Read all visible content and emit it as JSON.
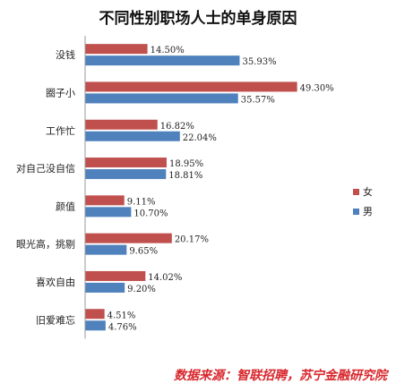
{
  "chart_data": {
    "type": "bar",
    "orientation": "horizontal",
    "title": "不同性别职场人士的单身原因",
    "categories": [
      "没钱",
      "圈子小",
      "工作忙",
      "对自己没自信",
      "颜值",
      "眼光高，挑剔",
      "喜欢自由",
      "旧爱难忘"
    ],
    "series": [
      {
        "name": "女",
        "color": "#c0504d",
        "values": [
          14.5,
          49.3,
          16.82,
          18.95,
          9.11,
          20.17,
          14.02,
          4.51
        ]
      },
      {
        "name": "男",
        "color": "#4f81bd",
        "values": [
          35.93,
          35.57,
          22.04,
          18.81,
          10.7,
          9.65,
          9.2,
          4.76
        ]
      }
    ],
    "value_labels_female": [
      "14.50%",
      "49.30%",
      "16.82%",
      "18.95%",
      "9.11%",
      "20.17%",
      "14.02%",
      "4.51%"
    ],
    "value_labels_male": [
      "35.93%",
      "35.57%",
      "22.04%",
      "18.81%",
      "10.70%",
      "9.65%",
      "9.20%",
      "4.76%"
    ],
    "xlim": [
      0,
      50
    ],
    "legend_position": "right"
  },
  "source_note": "数据来源：智联招聘，苏宁金融研究院"
}
